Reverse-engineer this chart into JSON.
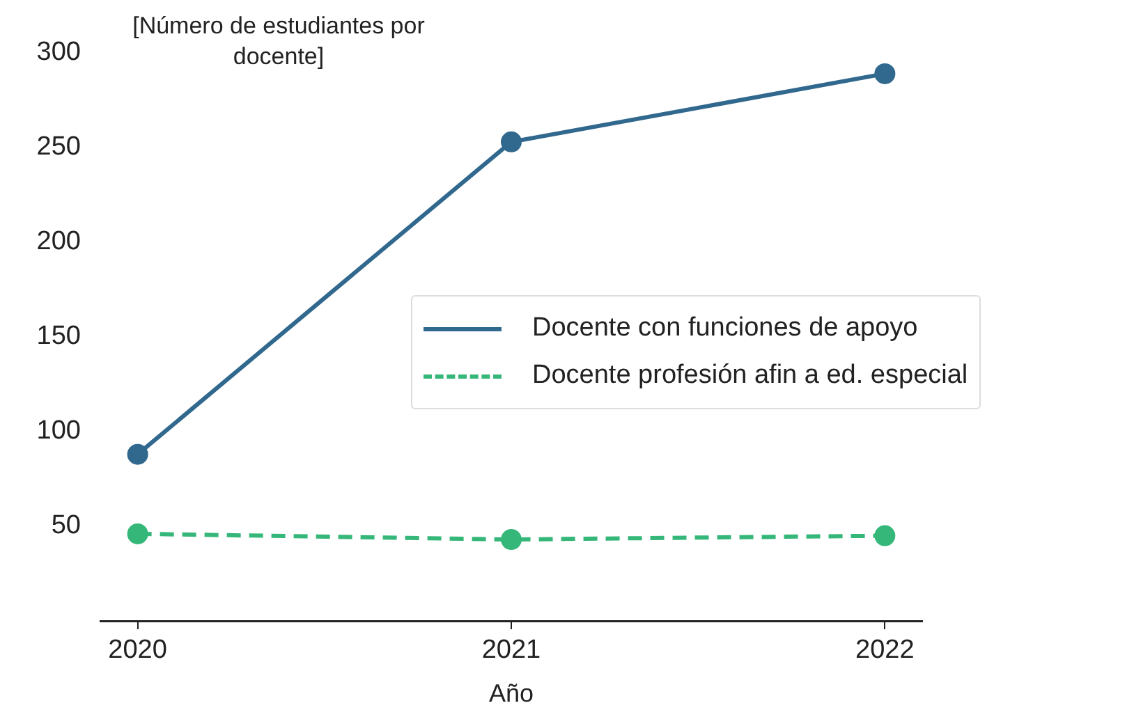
{
  "chart_data": {
    "type": "line",
    "ylabel": "[Número de estudiantes por docente]",
    "xlabel": "Año",
    "x": [
      2020,
      2021,
      2022
    ],
    "xlim": [
      2019.9,
      2022.1
    ],
    "xticks": [
      2020,
      2021,
      2022
    ],
    "ylim": [
      0,
      300
    ],
    "yticks": [
      50,
      100,
      150,
      200,
      250,
      300
    ],
    "grid": false,
    "legend": "center right",
    "marker": "circle",
    "series": [
      {
        "name": "Docente con funciones de apoyo",
        "color": "#31688e",
        "line_style": "solid",
        "values": [
          88,
          253,
          289
        ]
      },
      {
        "name": "Docente profesión afin a ed. especial",
        "color": "#35b779",
        "line_style": "dashed",
        "values": [
          46,
          43,
          45
        ]
      }
    ]
  }
}
